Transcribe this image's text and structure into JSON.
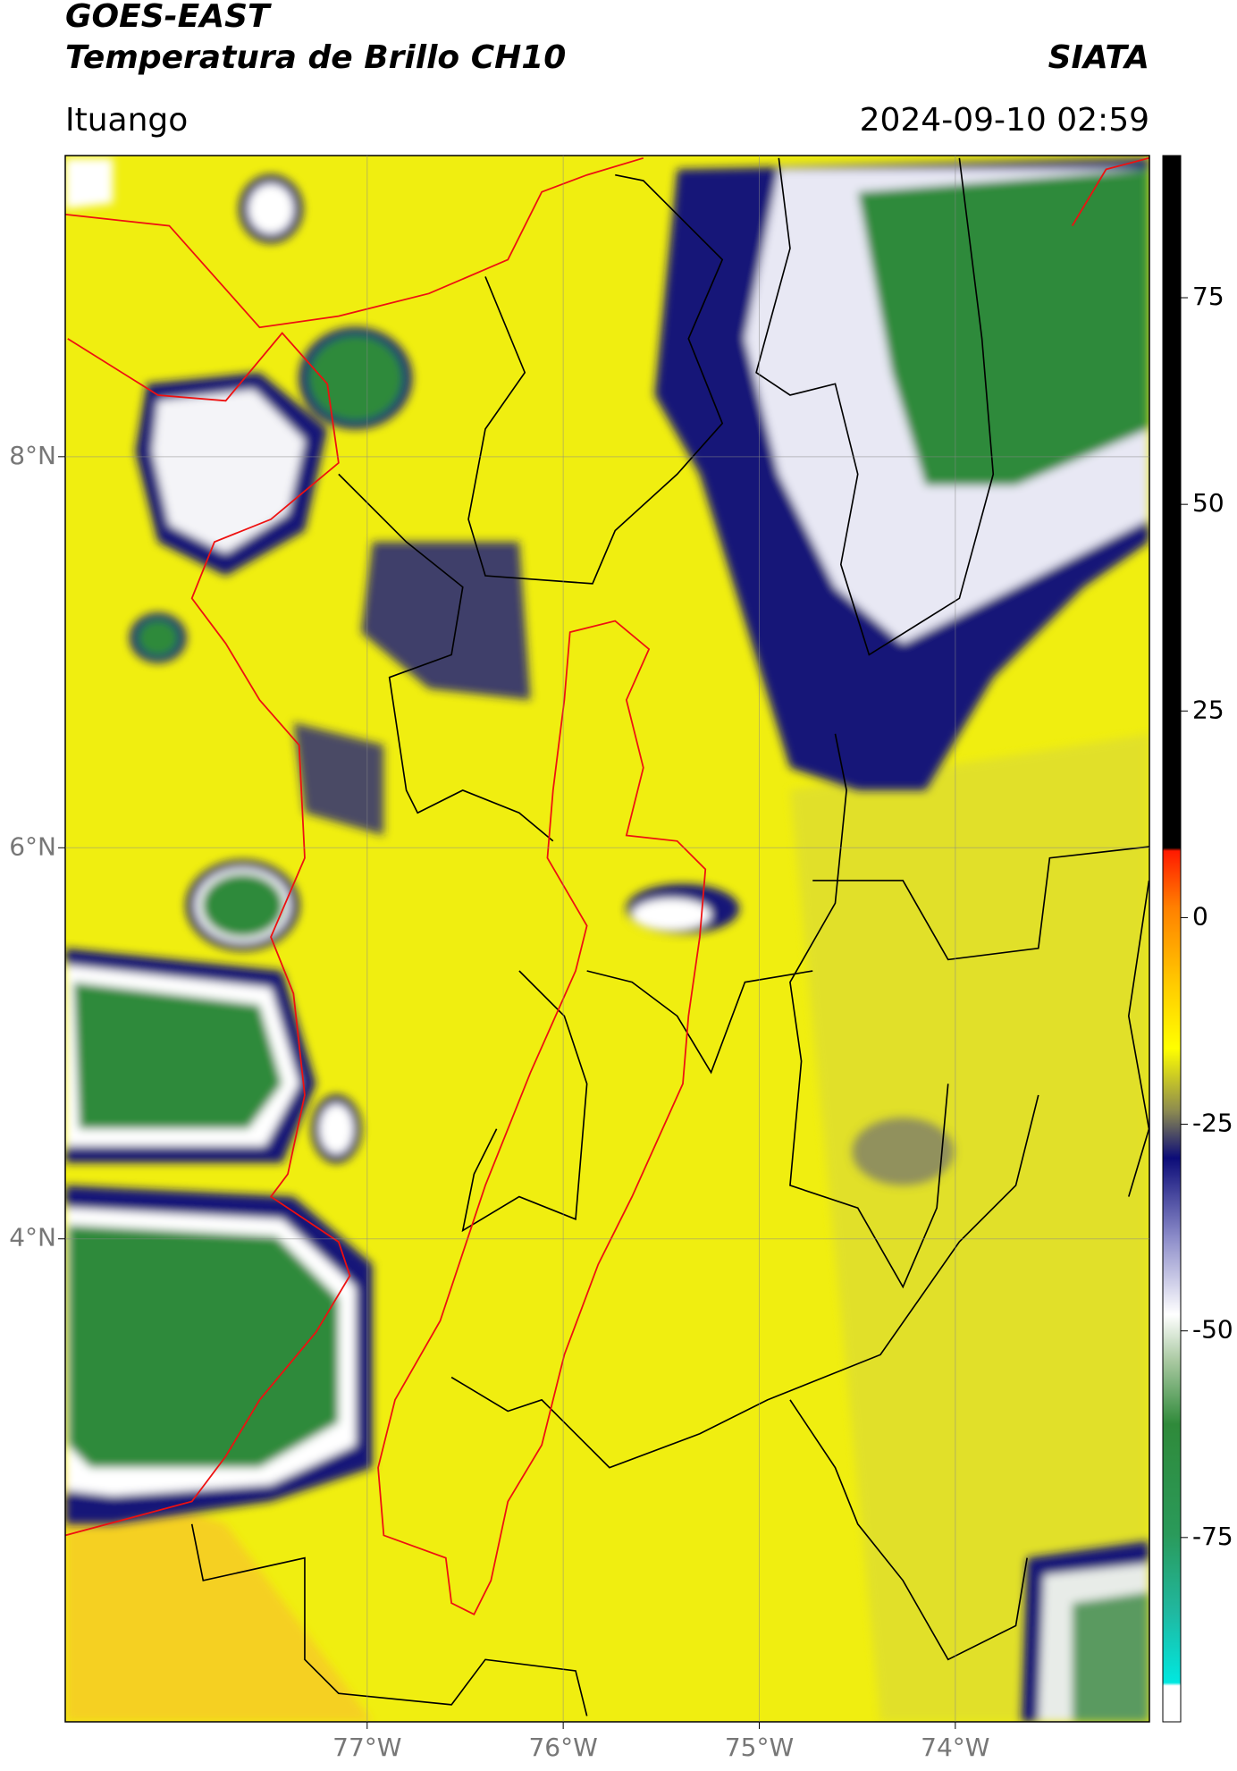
{
  "header": {
    "satellite": "GOES-EAST",
    "product": "Temperatura de Brillo CH10",
    "source": "SIATA",
    "region": "Ituango",
    "timestamp": "2024-09-10 02:59"
  },
  "chart_data": {
    "type": "map",
    "xlim": [
      -78.54,
      -73.01
    ],
    "ylim": [
      1.53,
      9.54
    ],
    "xticks": [
      {
        "value": -77,
        "label": "77°W"
      },
      {
        "value": -76,
        "label": "76°W"
      },
      {
        "value": -75,
        "label": "75°W"
      },
      {
        "value": -74,
        "label": "74°W"
      }
    ],
    "yticks": [
      {
        "value": 8,
        "label": "8°N"
      },
      {
        "value": 6,
        "label": "6°N"
      },
      {
        "value": 4,
        "label": "4°N"
      }
    ],
    "grid": true,
    "colorbar": {
      "lim": [
        -97.3,
        92.2
      ],
      "ticks": [
        75,
        50,
        25,
        0,
        -25,
        -50,
        -75
      ]
    }
  }
}
